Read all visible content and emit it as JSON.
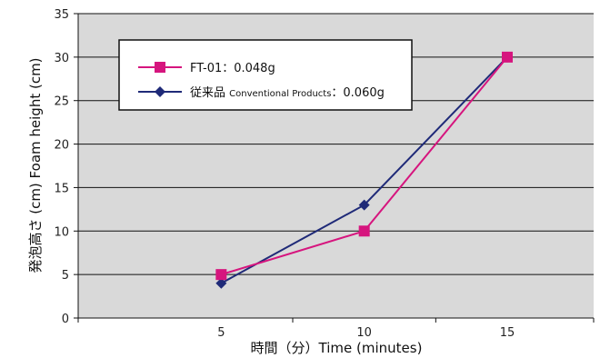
{
  "chart_data": {
    "type": "line",
    "title": "",
    "x": [
      5,
      10,
      15
    ],
    "x_tick_labels": [
      "5",
      "10",
      "15"
    ],
    "xlabel": "時間（分）Time (minutes)",
    "ylabel": "発泡高さ (cm) Foam height (cm)",
    "ylim": [
      0,
      35
    ],
    "y_ticks": [
      0,
      5,
      10,
      15,
      20,
      25,
      30,
      35
    ],
    "grid": "horizontal",
    "background": "#d9d9d9",
    "legend_position": "top-left",
    "series": [
      {
        "name": "FT-01：0.048g",
        "legend_parts": [
          "FT-01：0.048g"
        ],
        "values": [
          5,
          10,
          30
        ],
        "color": "#d6157e",
        "marker": "square"
      },
      {
        "name": "従来品 Conventional Products：0.060g",
        "legend_parts": [
          "従来品 ",
          "Conventional Products",
          "：0.060g"
        ],
        "values": [
          4,
          13,
          30
        ],
        "color": "#1f2a78",
        "marker": "diamond"
      }
    ]
  }
}
